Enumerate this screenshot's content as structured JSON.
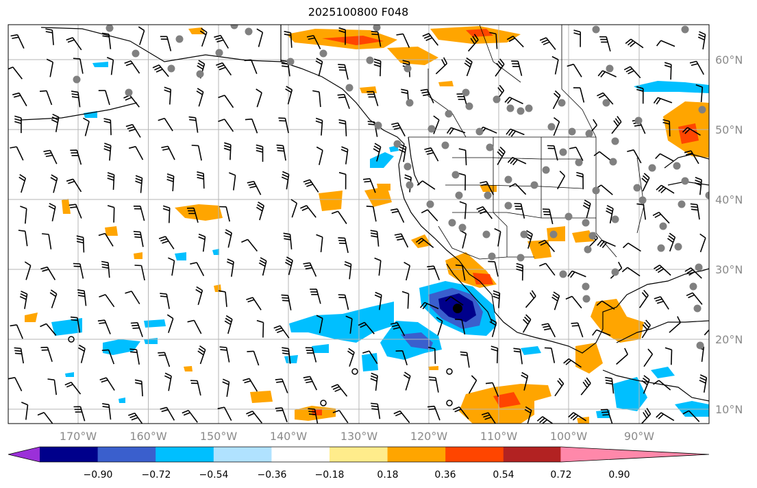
{
  "title": "2025100800 F048",
  "lon_labels": [
    "170°W",
    "160°W",
    "150°W",
    "140°W",
    "130°W",
    "120°W",
    "110°W",
    "100°W",
    "90°W"
  ],
  "lat_labels": [
    "60°N",
    "50°N",
    "40°N",
    "30°N",
    "20°N",
    "10°N"
  ],
  "colorbar": {
    "colors": [
      "#9b30d9",
      "#00008b",
      "#3a5fcd",
      "#00bfff",
      "#b0e2ff",
      "#ffffff",
      "#ffec8b",
      "#ffa500",
      "#ff4500",
      "#b22222",
      "#ff88aa"
    ],
    "tick_labels": [
      "−0.90",
      "−0.72",
      "−0.54",
      "−0.36",
      "−0.18",
      "0.18",
      "0.36",
      "0.54",
      "0.72",
      "0.90"
    ]
  },
  "map_extent": {
    "lon": [
      -180,
      -80
    ],
    "lat": [
      8,
      65
    ]
  }
}
